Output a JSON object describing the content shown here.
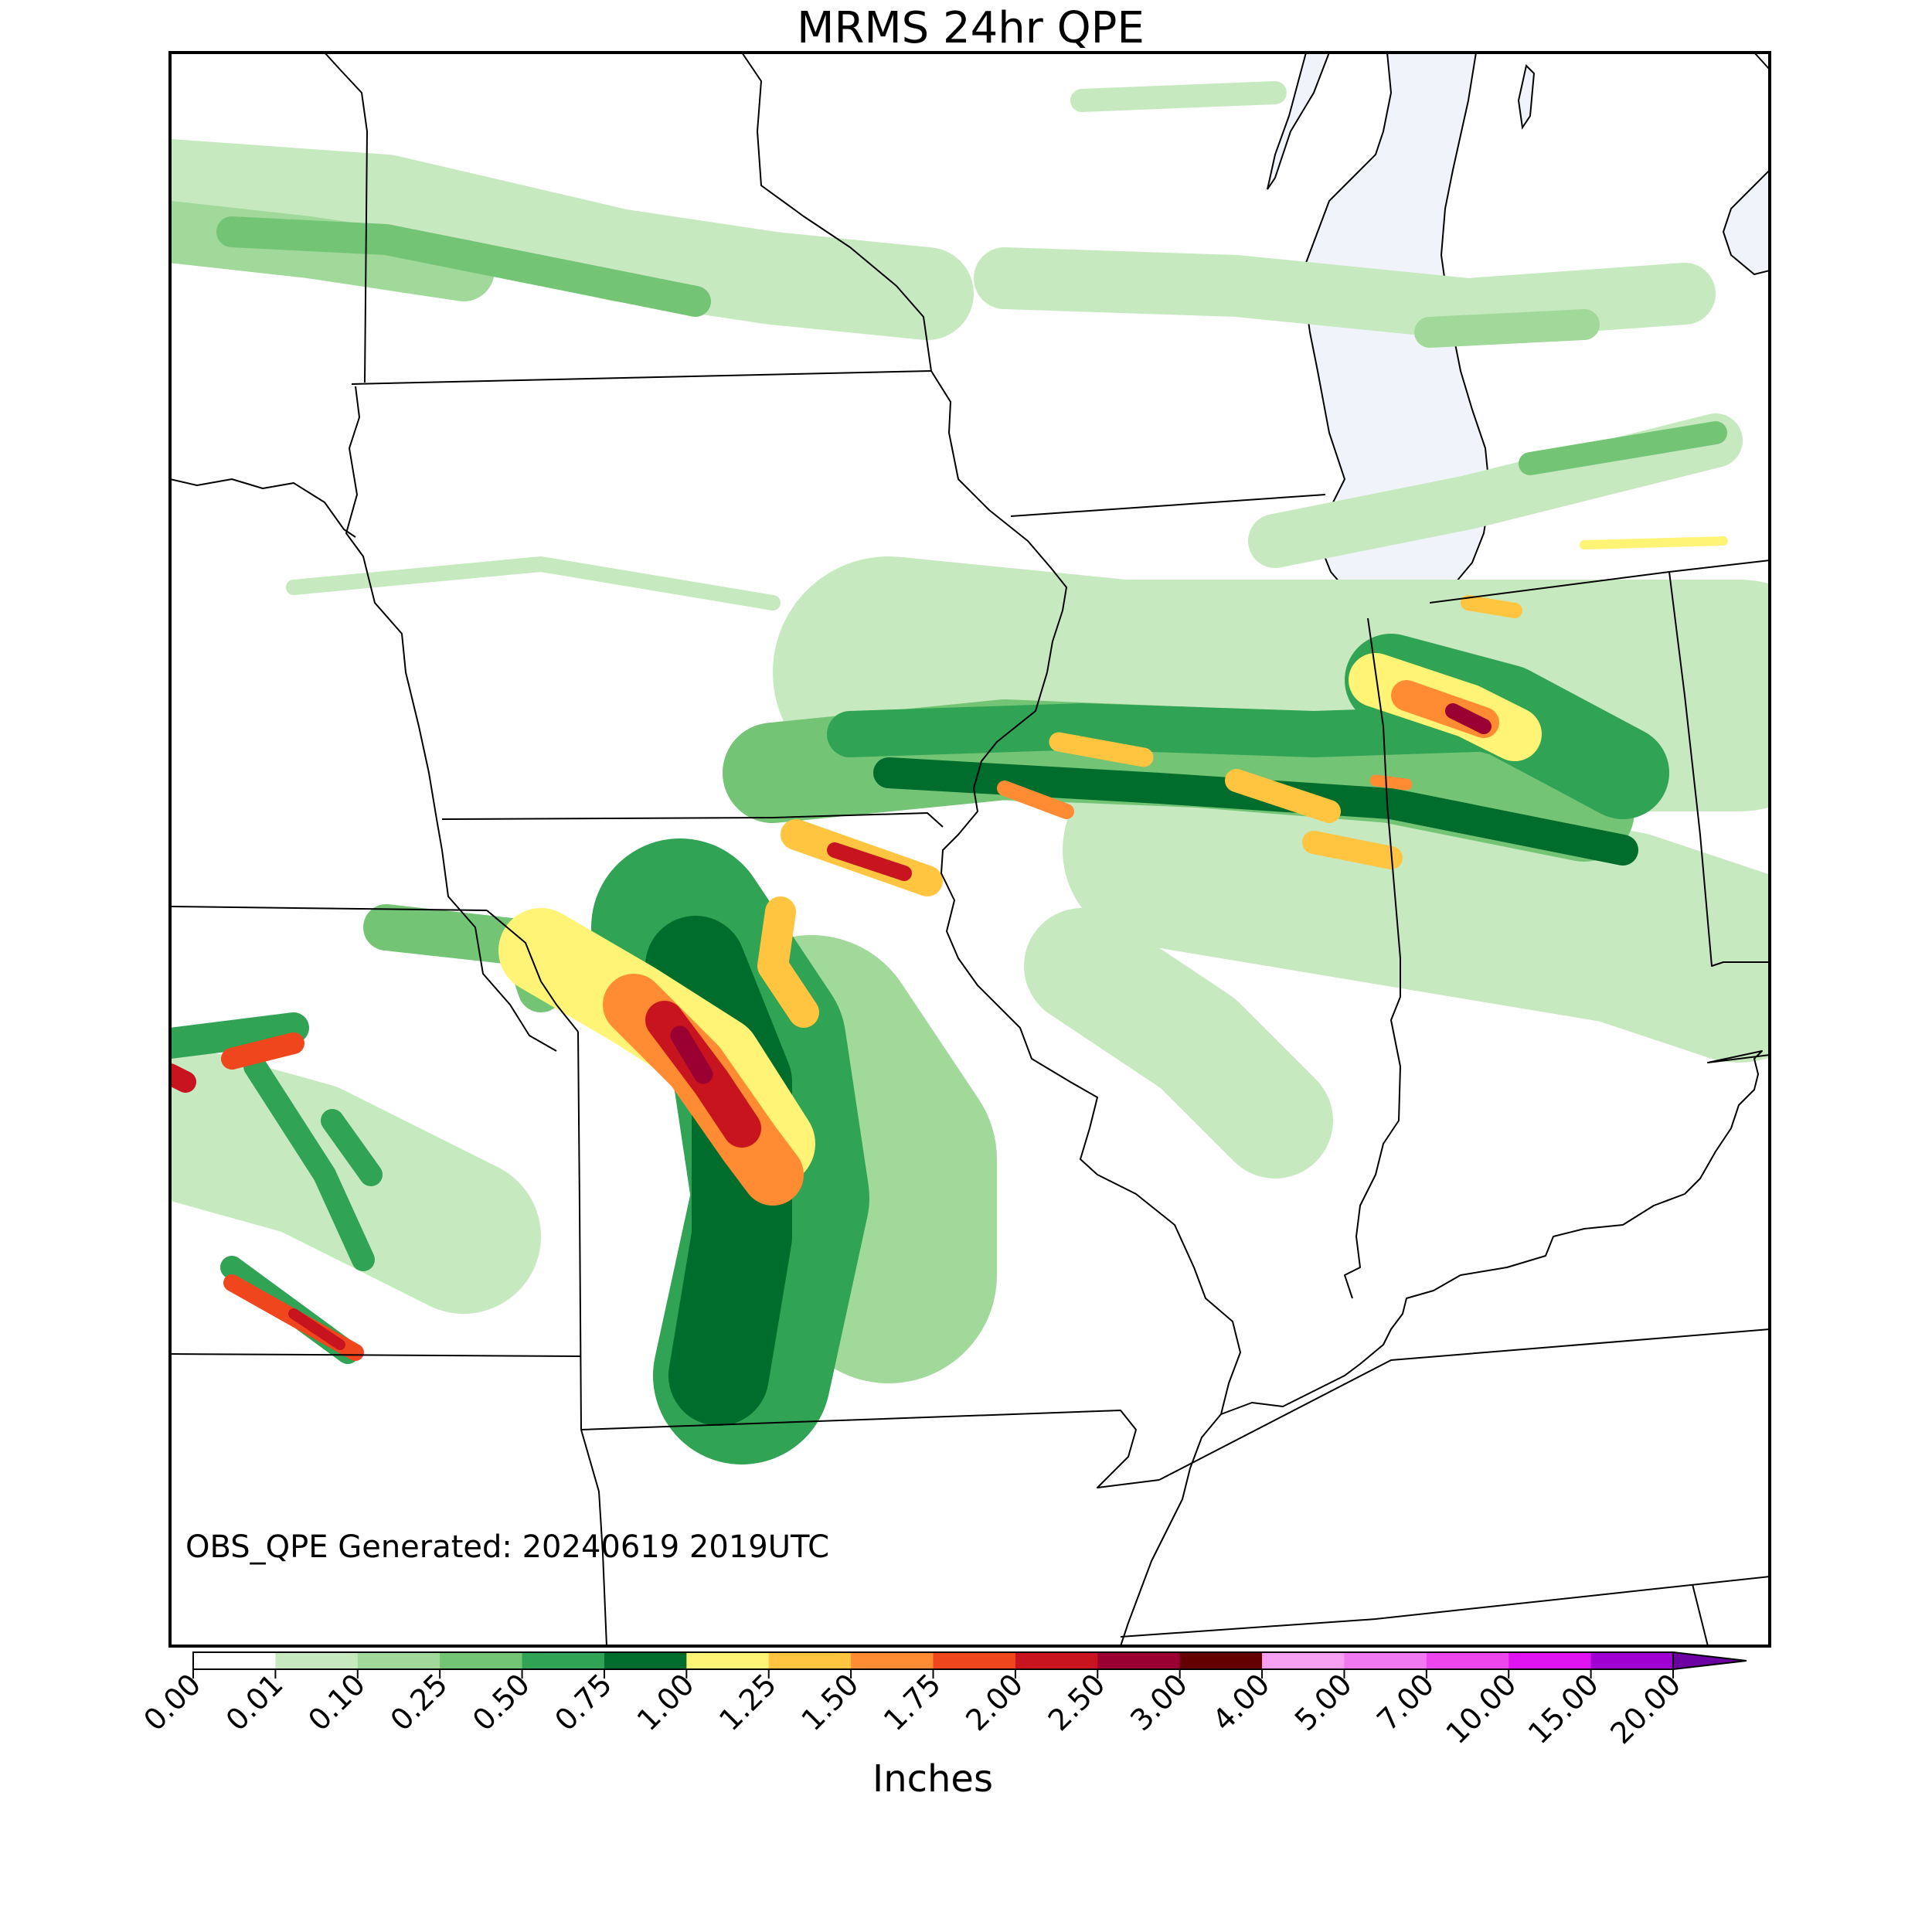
{
  "title": "MRMS 24hr QPE",
  "annotation": "OBS_QPE Generated: 20240619 2019UTC",
  "colorbar": {
    "label": "Inches",
    "ticks": [
      "0.00",
      "0.01",
      "0.10",
      "0.25",
      "0.50",
      "0.75",
      "1.00",
      "1.25",
      "1.50",
      "1.75",
      "2.00",
      "2.50",
      "3.00",
      "4.00",
      "5.00",
      "7.00",
      "10.00",
      "15.00",
      "20.00"
    ],
    "colors": [
      "#ffffff",
      "#c7e9c0",
      "#a1d99b",
      "#74c476",
      "#31a354",
      "#006d2c",
      "#fff475",
      "#ffc440",
      "#ff8c32",
      "#f0461e",
      "#c8141e",
      "#9b0032",
      "#640000",
      "#f5a0f0",
      "#f078f0",
      "#ec46ec",
      "#e014f0",
      "#a000d2",
      "#6c00a0"
    ],
    "extend_color": "#6c00a0"
  },
  "colors": {
    "lake": "#f0f4fa",
    "border": "#000000"
  }
}
